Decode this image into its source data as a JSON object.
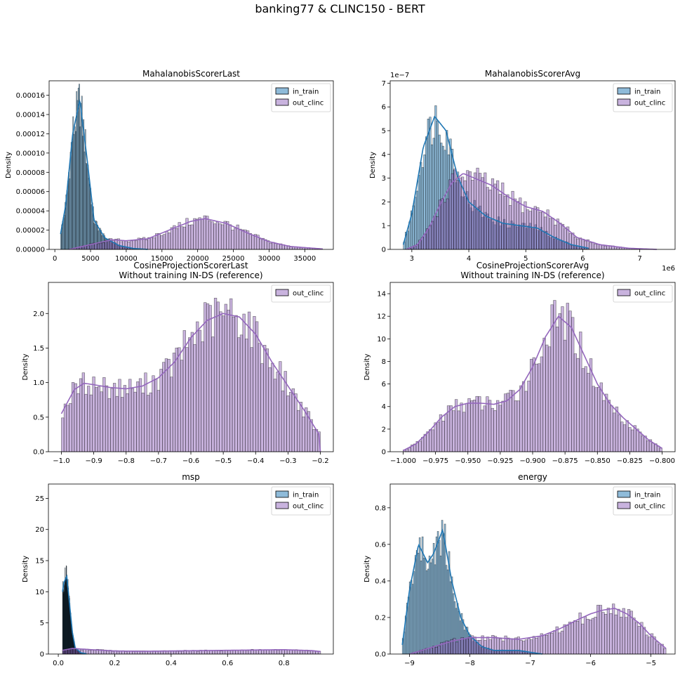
{
  "figure": {
    "suptitle": "banking77 & CLINC150 - BERT",
    "colors": {
      "in_train": "#1f77b4",
      "out_clinc": "#9467bd"
    }
  },
  "chart_data": [
    {
      "type": "histogram",
      "title": "MahalanobisScorerLast",
      "ylabel": "Density",
      "xlabel": "",
      "xlim": [
        -800,
        39000
      ],
      "ylim": [
        0,
        0.000175
      ],
      "xticks": [
        0,
        5000,
        10000,
        15000,
        20000,
        25000,
        30000,
        35000
      ],
      "xtick_labels": [
        "0",
        "5000",
        "10000",
        "15000",
        "20000",
        "25000",
        "30000",
        "35000"
      ],
      "yticks": [
        0,
        2e-05,
        4e-05,
        6e-05,
        8e-05,
        0.0001,
        0.00012,
        0.00014,
        0.00016
      ],
      "ytick_labels": [
        "0.00000",
        "0.00002",
        "0.00004",
        "0.00006",
        "0.00008",
        "0.00010",
        "0.00012",
        "0.00014",
        "0.00016"
      ],
      "legend": "top-right",
      "bins": 100,
      "series": [
        {
          "name": "in_train",
          "color": "#1f77b4",
          "x": [
            800,
            1500,
            2500,
            3500,
            4500,
            5500,
            7000,
            9000,
            11000,
            13000
          ],
          "y": [
            1.6e-05,
            4.5e-05,
            0.00012,
            0.000155,
            9.5e-05,
            3e-05,
            1.2e-05,
            4e-06,
            1e-06,
            0
          ]
        },
        {
          "name": "out_clinc",
          "color": "#9467bd",
          "x": [
            2000,
            5000,
            8000,
            10000,
            13000,
            16000,
            19000,
            21000,
            24000,
            27000,
            30000,
            33000,
            37500
          ],
          "y": [
            0,
            5e-06,
            1e-05,
            9e-06,
            1.1e-05,
            2e-05,
            2.9e-05,
            3.2e-05,
            2.7e-05,
            1.7e-05,
            8e-06,
            3e-06,
            5e-07
          ]
        }
      ]
    },
    {
      "type": "histogram",
      "title": "MahalanobisScorerAvg",
      "ylabel": "Density",
      "xlabel": "",
      "offset_label": "1e−7",
      "xoffset_label": "1e6",
      "xlim": [
        2.62,
        7.62
      ],
      "ylim": [
        0,
        7.1
      ],
      "xticks": [
        3,
        4,
        5,
        6,
        7
      ],
      "xtick_labels": [
        "3",
        "4",
        "5",
        "6",
        "7"
      ],
      "yticks": [
        0,
        1,
        2,
        3,
        4,
        5,
        6,
        7
      ],
      "ytick_labels": [
        "0",
        "1",
        "2",
        "3",
        "4",
        "5",
        "6",
        "7"
      ],
      "legend": "top-right",
      "bins": 100,
      "series": [
        {
          "name": "in_train",
          "color": "#1f77b4",
          "x": [
            2.85,
            3.0,
            3.2,
            3.4,
            3.6,
            3.8,
            4.0,
            4.3,
            4.6,
            4.9,
            5.2,
            5.5,
            5.8,
            6.1
          ],
          "y": [
            0.2,
            1.5,
            4.3,
            5.6,
            5.0,
            3.1,
            2.0,
            1.4,
            1.1,
            1.0,
            0.9,
            0.5,
            0.2,
            0.05
          ]
        },
        {
          "name": "out_clinc",
          "color": "#9467bd",
          "x": [
            2.9,
            3.1,
            3.3,
            3.5,
            3.7,
            3.9,
            4.1,
            4.4,
            4.7,
            5.0,
            5.3,
            5.6,
            5.9,
            6.3,
            6.8,
            7.3
          ],
          "y": [
            0,
            0.2,
            0.9,
            1.9,
            2.8,
            3.2,
            3.0,
            2.7,
            2.2,
            1.8,
            1.6,
            1.1,
            0.5,
            0.2,
            0.05,
            0
          ]
        }
      ]
    },
    {
      "type": "histogram",
      "title": "CosineProjectionScorerLast\nWithout training IN-DS (reference)",
      "ylabel": "Density",
      "xlabel": "",
      "xlim": [
        -1.04,
        -0.16
      ],
      "ylim": [
        0,
        2.45
      ],
      "xticks": [
        -1.0,
        -0.9,
        -0.8,
        -0.7,
        -0.6,
        -0.5,
        -0.4,
        -0.3,
        -0.2
      ],
      "xtick_labels": [
        "−1.0",
        "−0.9",
        "−0.8",
        "−0.7",
        "−0.6",
        "−0.5",
        "−0.4",
        "−0.3",
        "−0.2"
      ],
      "yticks": [
        0,
        0.5,
        1.0,
        1.5,
        2.0
      ],
      "ytick_labels": [
        "0.0",
        "0.5",
        "1.0",
        "1.5",
        "2.0"
      ],
      "legend": "top-right",
      "bins": 100,
      "series": [
        {
          "name": "out_clinc",
          "color": "#9467bd",
          "x": [
            -1.0,
            -0.96,
            -0.93,
            -0.9,
            -0.85,
            -0.8,
            -0.75,
            -0.7,
            -0.65,
            -0.6,
            -0.55,
            -0.5,
            -0.45,
            -0.4,
            -0.35,
            -0.3,
            -0.25,
            -0.2
          ],
          "y": [
            0.55,
            0.9,
            0.99,
            0.97,
            0.93,
            0.91,
            0.95,
            1.07,
            1.3,
            1.65,
            1.9,
            2.0,
            1.95,
            1.7,
            1.3,
            0.95,
            0.6,
            0.22
          ]
        }
      ]
    },
    {
      "type": "histogram",
      "title": "CosineProjectionScorerAvg\nWithout training IN-DS (reference)",
      "ylabel": "Density",
      "xlabel": "",
      "xlim": [
        -1.01,
        -0.79
      ],
      "ylim": [
        0,
        15.0
      ],
      "xticks": [
        -1.0,
        -0.975,
        -0.95,
        -0.925,
        -0.9,
        -0.875,
        -0.85,
        -0.825,
        -0.8
      ],
      "xtick_labels": [
        "−1.000",
        "−0.975",
        "−0.950",
        "−0.925",
        "−0.900",
        "−0.875",
        "−0.850",
        "−0.825",
        "−0.800"
      ],
      "yticks": [
        0,
        2,
        4,
        6,
        8,
        10,
        12,
        14
      ],
      "ytick_labels": [
        "0",
        "2",
        "4",
        "6",
        "8",
        "10",
        "12",
        "14"
      ],
      "legend": "top-right",
      "bins": 100,
      "series": [
        {
          "name": "out_clinc",
          "color": "#9467bd",
          "x": [
            -1.0,
            -0.99,
            -0.98,
            -0.97,
            -0.96,
            -0.95,
            -0.94,
            -0.93,
            -0.92,
            -0.91,
            -0.9,
            -0.89,
            -0.88,
            -0.87,
            -0.86,
            -0.85,
            -0.84,
            -0.83,
            -0.82,
            -0.81,
            -0.8
          ],
          "y": [
            0.1,
            0.7,
            1.8,
            3.1,
            4.0,
            4.3,
            4.3,
            4.2,
            4.5,
            5.5,
            7.5,
            10.2,
            12.0,
            11.0,
            8.5,
            6.0,
            4.2,
            3.0,
            2.0,
            1.0,
            0.3
          ]
        }
      ]
    },
    {
      "type": "histogram",
      "title": "msp",
      "ylabel": "Density",
      "xlabel": "",
      "xlim": [
        -0.035,
        0.975
      ],
      "ylim": [
        0,
        27.3
      ],
      "xticks": [
        0,
        0.2,
        0.4,
        0.6,
        0.8
      ],
      "xtick_labels": [
        "0.0",
        "0.2",
        "0.4",
        "0.6",
        "0.8"
      ],
      "yticks": [
        0,
        5,
        10,
        15,
        20,
        25
      ],
      "ytick_labels": [
        "0",
        "5",
        "10",
        "15",
        "20",
        "25"
      ],
      "legend": "top-right",
      "bins": 100,
      "series": [
        {
          "name": "in_train",
          "color": "#1f77b4",
          "x": [
            0.015,
            0.02,
            0.03,
            0.04,
            0.05,
            0.06,
            0.08,
            0.1
          ],
          "y": [
            10.0,
            11.5,
            12.5,
            8.0,
            3.5,
            1.0,
            0.2,
            0.05
          ]
        },
        {
          "name": "out_clinc",
          "color": "#9467bd",
          "x": [
            0.015,
            0.05,
            0.1,
            0.2,
            0.3,
            0.4,
            0.5,
            0.6,
            0.7,
            0.8,
            0.9,
            0.93
          ],
          "y": [
            0.6,
            0.9,
            0.75,
            0.5,
            0.45,
            0.5,
            0.55,
            0.6,
            0.65,
            0.7,
            0.55,
            0.4
          ]
        }
      ]
    },
    {
      "type": "histogram",
      "title": "energy",
      "ylabel": "Density",
      "xlabel": "",
      "xlim": [
        -9.32,
        -4.6
      ],
      "ylim": [
        0,
        0.93
      ],
      "xticks": [
        -9,
        -8,
        -7,
        -6,
        -5
      ],
      "xtick_labels": [
        "−9",
        "−8",
        "−7",
        "−6",
        "−5"
      ],
      "yticks": [
        0,
        0.2,
        0.4,
        0.6,
        0.8
      ],
      "ytick_labels": [
        "0.0",
        "0.2",
        "0.4",
        "0.6",
        "0.8"
      ],
      "legend": "top-right",
      "bins": 100,
      "series": [
        {
          "name": "in_train",
          "color": "#1f77b4",
          "x": [
            -9.12,
            -9.0,
            -8.85,
            -8.7,
            -8.6,
            -8.45,
            -8.3,
            -8.15,
            -8.0,
            -7.8,
            -7.6,
            -7.4,
            -7.2,
            -7.0,
            -6.8
          ],
          "y": [
            0.05,
            0.35,
            0.6,
            0.5,
            0.55,
            0.68,
            0.4,
            0.2,
            0.1,
            0.04,
            0.02,
            0.02,
            0.02,
            0.01,
            0
          ]
        },
        {
          "name": "out_clinc",
          "color": "#9467bd",
          "x": [
            -9.0,
            -8.6,
            -8.3,
            -8.0,
            -7.6,
            -7.2,
            -6.8,
            -6.5,
            -6.2,
            -6.0,
            -5.8,
            -5.6,
            -5.4,
            -5.2,
            -5.0,
            -4.75
          ],
          "y": [
            0,
            0.04,
            0.07,
            0.09,
            0.09,
            0.08,
            0.1,
            0.14,
            0.19,
            0.22,
            0.24,
            0.25,
            0.22,
            0.17,
            0.1,
            0.03
          ]
        }
      ]
    }
  ]
}
